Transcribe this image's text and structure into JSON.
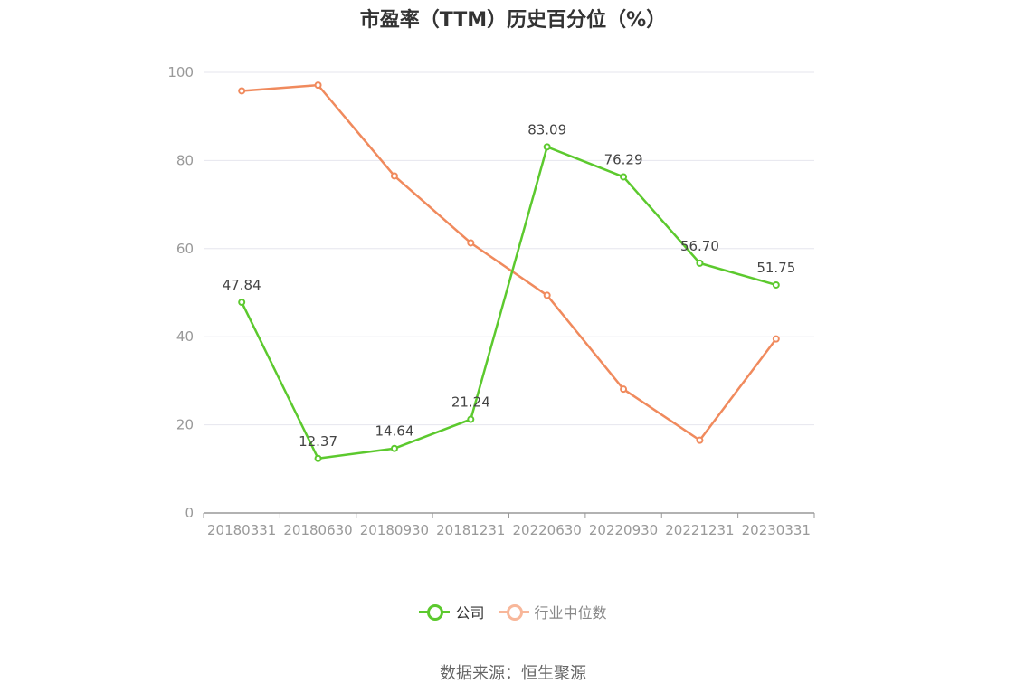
{
  "chart_data": {
    "type": "line",
    "title": "市盈率（TTM）历史百分位（%）",
    "categories": [
      "20180331",
      "20180630",
      "20180930",
      "20181231",
      "20220630",
      "20220930",
      "20221231",
      "20230331"
    ],
    "series": [
      {
        "name": "公司",
        "color": "#5cc92e",
        "values": [
          47.84,
          12.37,
          14.64,
          21.24,
          83.09,
          76.29,
          56.7,
          51.75
        ],
        "labels": [
          "47.84",
          "12.37",
          "14.64",
          "21.24",
          "83.09",
          "76.29",
          "56.70",
          "51.75"
        ]
      },
      {
        "name": "行业中位数",
        "color": "#f08a5d",
        "legend_color": "#f8b79a",
        "values": [
          95.8,
          97.1,
          76.5,
          61.3,
          49.4,
          28.1,
          16.5,
          39.5
        ]
      }
    ],
    "yticks": [
      "0",
      "20",
      "40",
      "60",
      "80",
      "100"
    ],
    "ylim": [
      0,
      100
    ],
    "grid": true,
    "legend_position": "bottom"
  },
  "source": "数据来源：恒生聚源"
}
